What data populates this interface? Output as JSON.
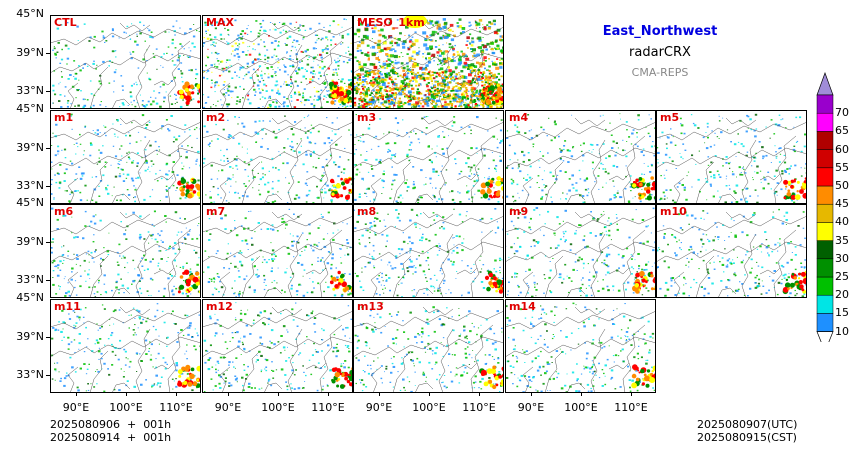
{
  "header": {
    "region": "East_Northwest",
    "product": "radarCRX",
    "system": "CMA-REPS"
  },
  "panels": [
    {
      "label": "CTL",
      "col": 0,
      "row": 0,
      "density": 1.0
    },
    {
      "label": "MAX",
      "col": 1,
      "row": 0,
      "density": 2.2
    },
    {
      "label": "MESO_1km",
      "col": 2,
      "row": 0,
      "density": 4.0
    },
    {
      "label": "m1",
      "col": 0,
      "row": 1,
      "density": 1.0
    },
    {
      "label": "m2",
      "col": 1,
      "row": 1,
      "density": 1.0
    },
    {
      "label": "m3",
      "col": 2,
      "row": 1,
      "density": 1.0
    },
    {
      "label": "m4",
      "col": 3,
      "row": 1,
      "density": 1.0
    },
    {
      "label": "m5",
      "col": 4,
      "row": 1,
      "density": 1.0
    },
    {
      "label": "m6",
      "col": 0,
      "row": 2,
      "density": 1.0
    },
    {
      "label": "m7",
      "col": 1,
      "row": 2,
      "density": 1.0
    },
    {
      "label": "m8",
      "col": 2,
      "row": 2,
      "density": 1.0
    },
    {
      "label": "m9",
      "col": 3,
      "row": 2,
      "density": 1.0
    },
    {
      "label": "m10",
      "col": 4,
      "row": 2,
      "density": 1.0
    },
    {
      "label": "m11",
      "col": 0,
      "row": 3,
      "density": 1.0
    },
    {
      "label": "m12",
      "col": 1,
      "row": 3,
      "density": 1.0
    },
    {
      "label": "m13",
      "col": 2,
      "row": 3,
      "density": 1.0
    },
    {
      "label": "m14",
      "col": 3,
      "row": 3,
      "density": 1.0
    }
  ],
  "axes": {
    "y_top": "45°N",
    "y_ticks": [
      "39°N",
      "33°N"
    ],
    "x_ticks": [
      "90°E",
      "100°E",
      "110°E"
    ]
  },
  "colorbar": {
    "levels": [
      "10",
      "15",
      "20",
      "25",
      "30",
      "35",
      "40",
      "45",
      "50",
      "55",
      "60",
      "65",
      "70"
    ],
    "colors": [
      "#1e90ff",
      "#00e5e5",
      "#00c000",
      "#009000",
      "#006000",
      "#ffff00",
      "#e6b800",
      "#ff8c00",
      "#ff0000",
      "#d00000",
      "#b00000",
      "#ff00ff",
      "#9900cc",
      "#a08cd8"
    ]
  },
  "footer": {
    "init_utc": "2025080906  +  001h",
    "init_cst": "2025080914  +  001h",
    "valid_utc": "2025080907(UTC)",
    "valid_cst": "2025080915(CST)"
  }
}
